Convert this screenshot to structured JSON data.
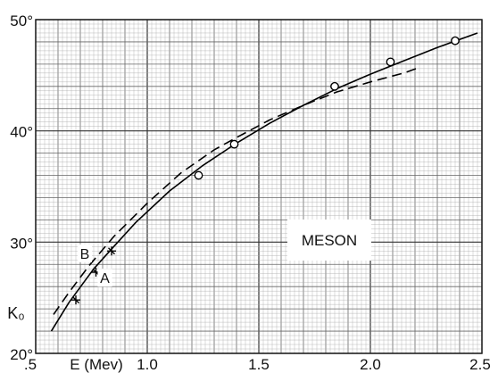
{
  "chart_data": {
    "type": "line",
    "xlim": [
      0.5,
      2.5
    ],
    "ylim": [
      20,
      50
    ],
    "x_ticks": [
      ".5",
      "1.0",
      "1.5",
      "2.0",
      "2.5"
    ],
    "y_ticks": [
      "20°",
      "30°",
      "40°",
      "50°"
    ],
    "xlabel": "E (Mev)",
    "ylabel": "K₀",
    "grid": true,
    "series": [
      {
        "name": "A",
        "style": "solid",
        "x": [
          0.57,
          0.65,
          0.76,
          0.85,
          0.95,
          1.1,
          1.25,
          1.4,
          1.55,
          1.7,
          1.85,
          2.0,
          2.15,
          2.3,
          2.48
        ],
        "y": [
          22.0,
          24.6,
          27.6,
          29.6,
          31.8,
          34.6,
          36.9,
          38.9,
          40.7,
          42.3,
          43.8,
          45.1,
          46.3,
          47.5,
          48.8
        ]
      },
      {
        "name": "B",
        "style": "dashed",
        "x": [
          0.58,
          0.65,
          0.74,
          0.85,
          1.0,
          1.15,
          1.3,
          1.4,
          1.55,
          1.7,
          1.85,
          2.0,
          2.15,
          2.22
        ],
        "y": [
          23.5,
          25.5,
          27.9,
          30.5,
          33.5,
          36.2,
          38.3,
          39.4,
          41.0,
          42.3,
          43.5,
          44.4,
          45.2,
          45.7
        ]
      }
    ],
    "open_circles": {
      "x": [
        1.23,
        1.39,
        1.84,
        2.09,
        2.38
      ],
      "y": [
        36.0,
        38.8,
        44.0,
        46.2,
        48.1
      ]
    },
    "crosses": {
      "x": [
        0.68,
        0.77,
        0.84
      ],
      "y": [
        24.8,
        27.3,
        29.2
      ]
    },
    "curve_labels": [
      {
        "text": "A",
        "x": 0.81,
        "y": 26.8
      },
      {
        "text": "B",
        "x": 0.72,
        "y": 29.0
      }
    ],
    "annotation": "MESON"
  }
}
